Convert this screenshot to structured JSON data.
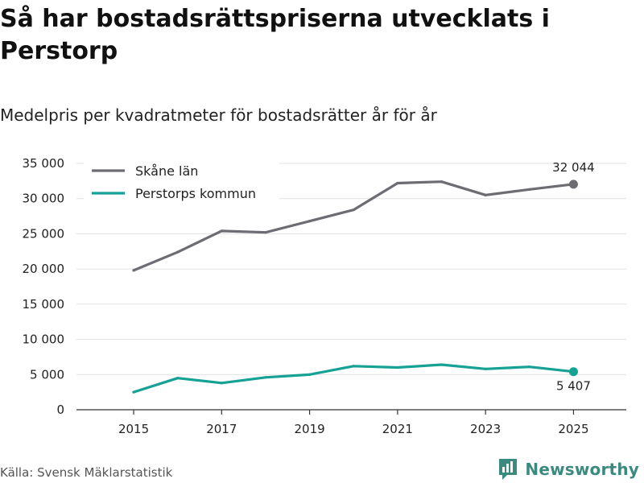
{
  "title": "Så har bostadsrättspriserna utvecklats i Perstorp",
  "subtitle": "Medelpris per kvadratmeter för bostadsrätter år för år",
  "source": "Källa: Svensk Mäklarstatistik",
  "brand": {
    "name": "Newsworthy",
    "logo_icon": "newsworthy-logo-icon",
    "color": "#3a8a80"
  },
  "chart_data": {
    "type": "line",
    "x": [
      2015,
      2016,
      2017,
      2018,
      2019,
      2020,
      2021,
      2022,
      2023,
      2024,
      2025
    ],
    "xticks": [
      2015,
      2017,
      2019,
      2021,
      2023,
      2025
    ],
    "xtick_labels": [
      "2015",
      "2017",
      "2019",
      "2021",
      "2023",
      "2025"
    ],
    "yticks": [
      0,
      5000,
      10000,
      15000,
      20000,
      25000,
      30000,
      35000
    ],
    "ytick_labels": [
      "0",
      "5 000",
      "10 000",
      "15 000",
      "20 000",
      "25 000",
      "30 000",
      "35 000"
    ],
    "xlim": [
      2013.7,
      2026.2
    ],
    "ylim": [
      0,
      35000
    ],
    "grid": true,
    "legend_position": "top-left",
    "series": [
      {
        "name": "Skåne län",
        "color": "#6d6c73",
        "values": [
          19800,
          22400,
          25400,
          25200,
          26800,
          28400,
          32200,
          32400,
          30500,
          31300,
          32044
        ],
        "end_label": "32 044",
        "end_label_position": "above"
      },
      {
        "name": "Perstorps kommun",
        "color": "#16a195",
        "values": [
          2500,
          4500,
          3800,
          4600,
          5000,
          6200,
          6000,
          6400,
          5800,
          6100,
          5407
        ],
        "end_label": "5 407",
        "end_label_position": "below"
      }
    ]
  }
}
